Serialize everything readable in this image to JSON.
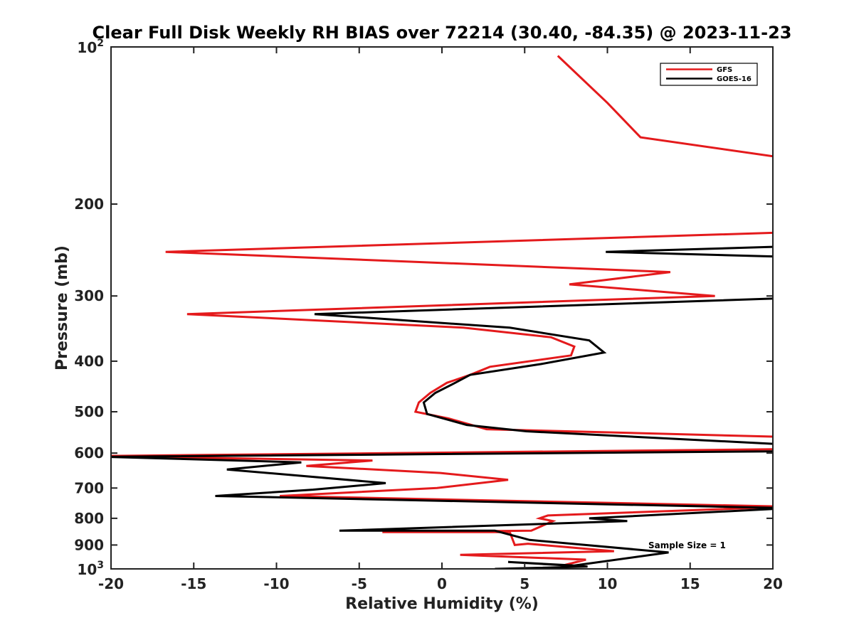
{
  "chart_data": {
    "type": "line",
    "title": "Clear Full Disk Weekly RH BIAS over 72214 (30.40, -84.35) @ 2023-11-23",
    "xlabel": "Relative Humidity (%)",
    "ylabel": "Pressure (mb)",
    "xlim": [
      -20,
      20
    ],
    "ylim": [
      100,
      1000
    ],
    "yscale": "log",
    "y_reversed": true,
    "grid": false,
    "legend_position": "top-right",
    "x_ticks": [
      -20,
      -15,
      -10,
      -5,
      0,
      5,
      10,
      15,
      20
    ],
    "x_tick_labels": [
      "-20",
      "-15",
      "-10",
      "-5",
      "0",
      "5",
      "10",
      "15",
      "20"
    ],
    "y_ticks": [
      200,
      300,
      400,
      500,
      600,
      700,
      800,
      900
    ],
    "y_tick_labels": [
      "200",
      "300",
      "400",
      "500",
      "600",
      "700",
      "800",
      "900"
    ],
    "y_end_labels": {
      "top_base": "10",
      "top_exp": "2",
      "bottom_base": "10",
      "bottom_exp": "3"
    },
    "annotation": "Sample Size = 1",
    "series": [
      {
        "name": "GFS",
        "color": "#e41a1c",
        "points": [
          [
            7.1,
            1000
          ],
          [
            7.3,
            985
          ],
          [
            8.7,
            960
          ],
          [
            1.1,
            940
          ],
          [
            10.4,
            925
          ],
          [
            5.2,
            895
          ],
          [
            4.4,
            900
          ],
          [
            4.1,
            850
          ],
          [
            -3.6,
            850
          ],
          [
            5.4,
            845
          ],
          [
            6.7,
            810
          ],
          [
            5.9,
            800
          ],
          [
            6.4,
            790
          ],
          [
            21.0,
            760
          ],
          [
            -9.8,
            725
          ],
          [
            -0.3,
            700
          ],
          [
            4.0,
            675
          ],
          [
            -0.1,
            655
          ],
          [
            -8.2,
            635
          ],
          [
            -4.2,
            620
          ],
          [
            -21.0,
            608
          ],
          [
            20.0,
            590
          ],
          [
            22.0,
            560
          ],
          [
            2.7,
            540
          ],
          [
            0.4,
            515
          ],
          [
            -1.6,
            500
          ],
          [
            -1.4,
            480
          ],
          [
            -0.7,
            460
          ],
          [
            0.3,
            440
          ],
          [
            1.7,
            425
          ],
          [
            2.9,
            410
          ],
          [
            7.8,
            390
          ],
          [
            8.0,
            375
          ],
          [
            6.6,
            360
          ],
          [
            1.3,
            345
          ],
          [
            -15.4,
            325
          ],
          [
            16.5,
            300
          ],
          [
            7.7,
            285
          ],
          [
            13.8,
            270
          ],
          [
            -16.7,
            247
          ],
          [
            22.0,
            226
          ],
          [
            20.0,
            162
          ],
          [
            12.0,
            149
          ],
          [
            10.0,
            128
          ],
          [
            7.0,
            104
          ]
        ]
      },
      {
        "name": "GOES-16",
        "color": "#000000",
        "points": [
          [
            3.2,
            1000
          ],
          [
            8.8,
            990
          ],
          [
            4.0,
            970
          ],
          [
            8.0,
            985
          ],
          [
            13.7,
            930
          ],
          [
            5.3,
            880
          ],
          [
            3.2,
            845
          ],
          [
            -6.2,
            845
          ],
          [
            11.2,
            810
          ],
          [
            8.9,
            800
          ],
          [
            21.0,
            765
          ],
          [
            -13.7,
            725
          ],
          [
            -7.8,
            705
          ],
          [
            -3.4,
            685
          ],
          [
            -13.0,
            645
          ],
          [
            -8.5,
            625
          ],
          [
            -20.3,
            610
          ],
          [
            21.0,
            595
          ],
          [
            21.0,
            578
          ],
          [
            5.1,
            545
          ],
          [
            1.5,
            530
          ],
          [
            -0.9,
            505
          ],
          [
            -1.1,
            480
          ],
          [
            -0.4,
            460
          ],
          [
            0.8,
            440
          ],
          [
            1.7,
            425
          ],
          [
            6.0,
            405
          ],
          [
            9.8,
            385
          ],
          [
            8.9,
            365
          ],
          [
            4.1,
            345
          ],
          [
            -7.7,
            325
          ],
          [
            22.0,
            302
          ],
          [
            22.0,
            253
          ],
          [
            9.9,
            247
          ],
          [
            21.0,
            241
          ]
        ]
      }
    ]
  }
}
